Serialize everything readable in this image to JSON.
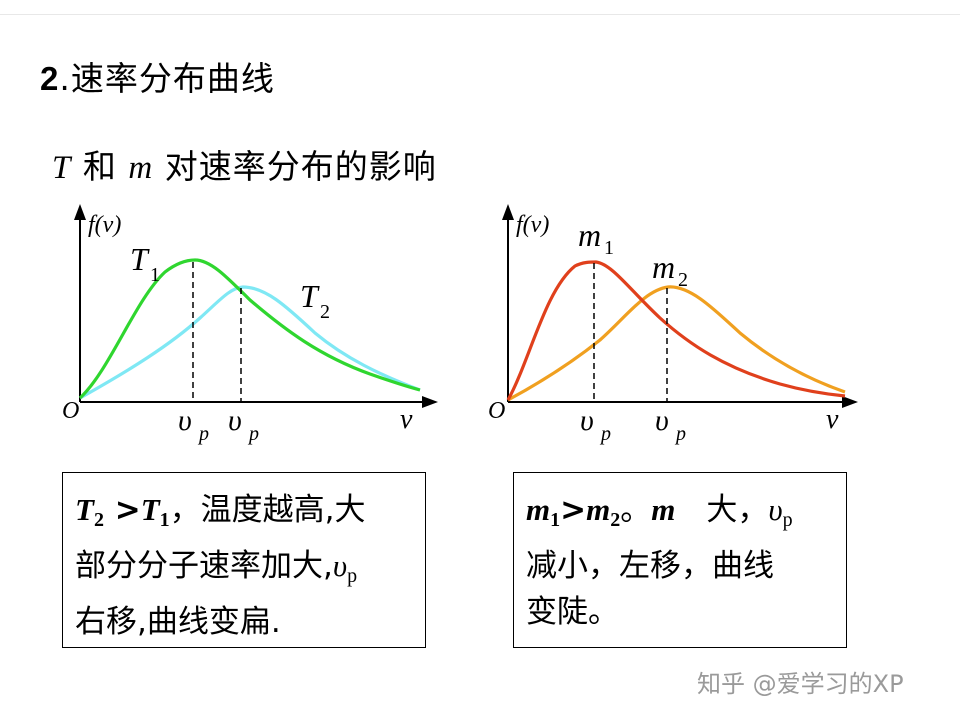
{
  "heading": {
    "number": "2",
    "dot": ".",
    "text": "速率分布曲线"
  },
  "subheading": {
    "T": "T",
    "he": "和",
    "m": "m",
    "rest": "对速率分布的影响"
  },
  "chart_data": [
    {
      "type": "line",
      "ylabel": "f(v)",
      "xlabel": "v",
      "origin": "O",
      "series": [
        {
          "name": "T1",
          "color": "#2fd62f",
          "peak_x": 0.35
        },
        {
          "name": "T2",
          "color": "#7fe8f4",
          "peak_x": 0.49
        }
      ],
      "x_tick_labels": [
        "v_p",
        "v_p"
      ]
    },
    {
      "type": "line",
      "ylabel": "f(v)",
      "xlabel": "v",
      "origin": "O",
      "series": [
        {
          "name": "m1",
          "color": "#e0401c",
          "peak_x": 0.26
        },
        {
          "name": "m2",
          "color": "#f0a020",
          "peak_x": 0.48
        }
      ],
      "x_tick_labels": [
        "v_p",
        "v_p"
      ]
    }
  ],
  "left_box": {
    "t2": "T",
    "t2_sub": "2",
    "gt": " >",
    "t1": "T",
    "t1_sub": "1",
    "line1_rest": "，温度越高,大",
    "line2": "部分分子速率加大,",
    "vp": "υ",
    "vp_sub": "p",
    "line3": "右移,曲线变扁."
  },
  "right_box": {
    "m1": "m",
    "m1_sub": "1",
    "gt": ">",
    "m2": "m",
    "m2_sub": "2",
    "dot": "。",
    "m": "m",
    "da": "　大，",
    "vp": "υ",
    "vp_sub": "p",
    "line2": "减小，左移，曲线",
    "line3": "变陡。"
  },
  "watermark": "知乎 @爱学习的XP"
}
